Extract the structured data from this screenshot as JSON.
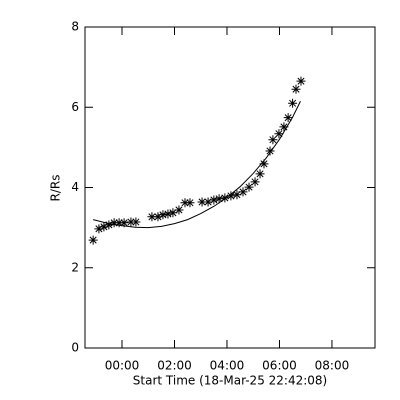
{
  "chart_data": {
    "type": "scatter",
    "xlabel": "Start Time (18-Mar-25 22:42:08)",
    "ylabel": "R/Rs",
    "xlim": [
      -1.41,
      9.64
    ],
    "ylim": [
      0,
      8
    ],
    "xticks": [
      {
        "value": 0,
        "label": "00:00"
      },
      {
        "value": 2,
        "label": "02:00"
      },
      {
        "value": 4,
        "label": "04:00"
      },
      {
        "value": 6,
        "label": "06:00"
      },
      {
        "value": 8,
        "label": "08:00"
      }
    ],
    "yticks": [
      0,
      2,
      4,
      6,
      8
    ],
    "color": "#000000",
    "x": [
      -1.1,
      -0.88,
      -0.69,
      -0.5,
      -0.3,
      -0.11,
      0.08,
      0.34,
      0.53,
      1.14,
      1.37,
      1.56,
      1.75,
      1.94,
      2.17,
      2.4,
      2.59,
      3.05,
      3.28,
      3.5,
      3.7,
      3.92,
      4.15,
      4.38,
      4.61,
      4.84,
      5.07,
      5.26,
      5.41,
      5.64,
      5.75,
      5.98,
      6.17,
      6.33,
      6.5,
      6.63,
      6.82
    ],
    "values": [
      2.69,
      2.97,
      3.02,
      3.07,
      3.12,
      3.12,
      3.12,
      3.14,
      3.14,
      3.27,
      3.27,
      3.32,
      3.34,
      3.37,
      3.44,
      3.62,
      3.62,
      3.64,
      3.64,
      3.69,
      3.72,
      3.74,
      3.79,
      3.82,
      3.89,
      4.01,
      4.14,
      4.34,
      4.59,
      4.91,
      5.19,
      5.34,
      5.51,
      5.74,
      6.1,
      6.45,
      6.65
    ],
    "fit": {
      "x": [
        -1.1,
        -0.5,
        0,
        0.5,
        1,
        1.5,
        2,
        2.5,
        3,
        3.5,
        4,
        4.5,
        5,
        5.5,
        6,
        6.5,
        6.8
      ],
      "values": [
        3.2,
        3.1,
        3.05,
        3.01,
        3.0,
        3.03,
        3.1,
        3.2,
        3.35,
        3.53,
        3.75,
        4.02,
        4.35,
        4.74,
        5.2,
        5.75,
        6.15
      ]
    }
  }
}
